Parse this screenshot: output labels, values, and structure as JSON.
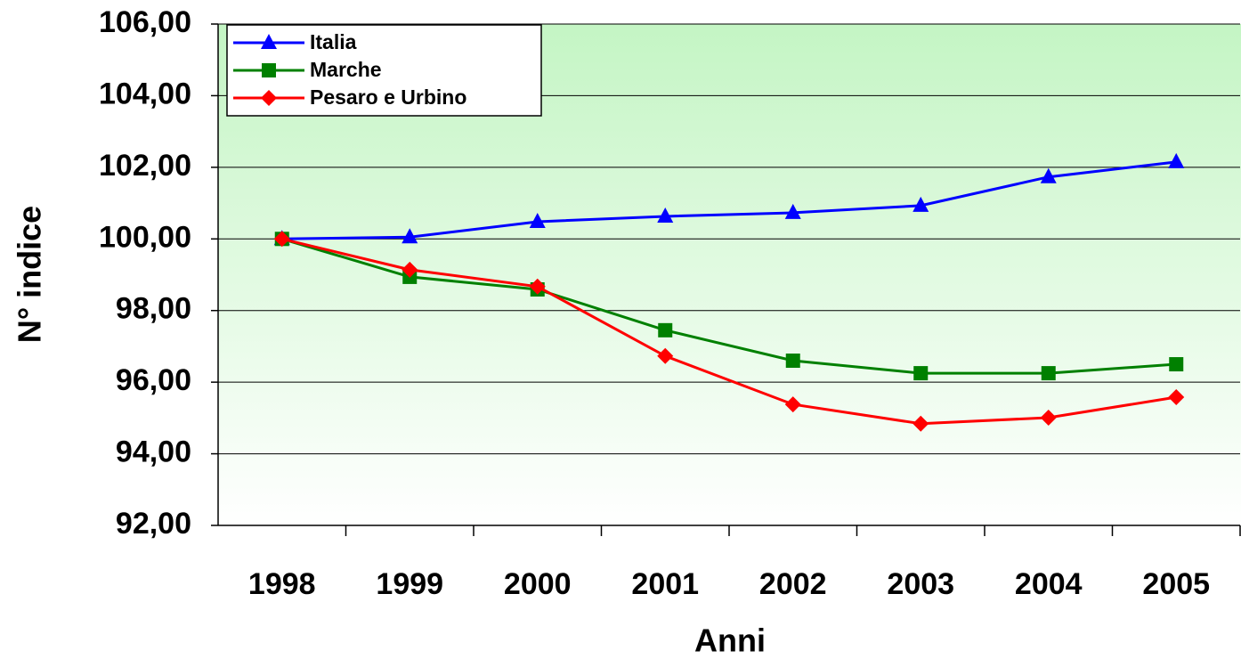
{
  "chart_data": {
    "type": "line",
    "x_label": "Anni",
    "y_label": "N° indice",
    "categories": [
      "1998",
      "1999",
      "2000",
      "2001",
      "2002",
      "2003",
      "2004",
      "2005"
    ],
    "series": [
      {
        "name": "Italia",
        "color": "#0000ff",
        "marker": "triangle",
        "values": [
          100,
          100.05,
          100.48,
          100.63,
          100.73,
          100.93,
          101.73,
          102.15
        ]
      },
      {
        "name": "Marche",
        "color": "#008000",
        "marker": "square",
        "values": [
          100,
          98.94,
          98.59,
          97.45,
          96.6,
          96.25,
          96.25,
          96.5
        ]
      },
      {
        "name": "Pesaro e Urbino",
        "color": "#ff0000",
        "marker": "diamond",
        "values": [
          100,
          99.14,
          98.67,
          96.73,
          95.38,
          94.84,
          95.01,
          95.58
        ]
      }
    ],
    "ylim": [
      92,
      106
    ],
    "yticks": [
      {
        "value": 92,
        "label": "92,00"
      },
      {
        "value": 94,
        "label": "94,00"
      },
      {
        "value": 96,
        "label": "96,00"
      },
      {
        "value": 98,
        "label": "98,00"
      },
      {
        "value": 100,
        "label": "100,00"
      },
      {
        "value": 102,
        "label": "102,00"
      },
      {
        "value": 104,
        "label": "104,00"
      },
      {
        "value": 106,
        "label": "106,00"
      }
    ],
    "grid": true,
    "legend": "top-left"
  }
}
